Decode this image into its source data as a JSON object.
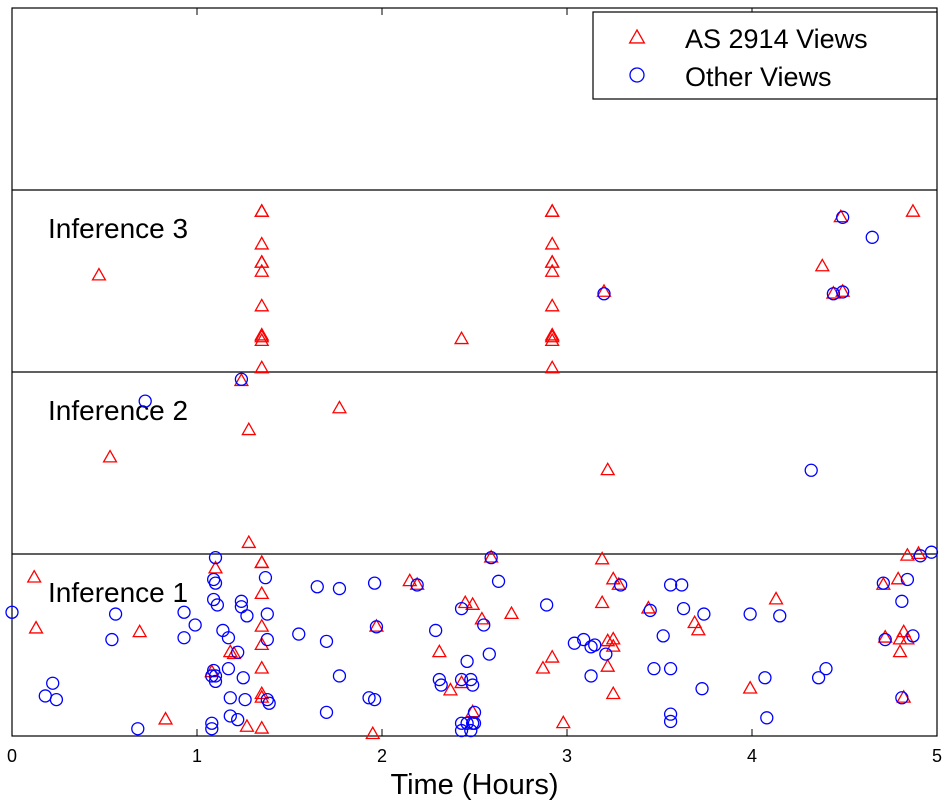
{
  "chart_data": {
    "type": "scatter",
    "xlabel": "Time (Hours)",
    "xlim": [
      0,
      5
    ],
    "xticks": [
      "0",
      "1",
      "2",
      "3",
      "4",
      "5"
    ],
    "ylim": [
      0,
      4
    ],
    "band_labels": [
      "Inference 1",
      "Inference 2",
      "Inference 3"
    ],
    "legend": {
      "position": "top-right",
      "entries": [
        "AS 2914 Views",
        "Other Views"
      ]
    },
    "colors": {
      "as2914": "#ff0000",
      "other": "#0000ff"
    },
    "series": [
      {
        "name": "AS 2914 Views",
        "marker": "triangle",
        "points": [
          [
            0.47,
            2.53
          ],
          [
            1.35,
            2.88
          ],
          [
            1.35,
            2.88
          ],
          [
            1.35,
            2.7
          ],
          [
            1.35,
            2.55
          ],
          [
            1.35,
            2.6
          ],
          [
            1.35,
            2.6
          ],
          [
            1.35,
            2.36
          ],
          [
            1.35,
            2.2
          ],
          [
            1.35,
            2.19
          ],
          [
            1.35,
            2.17
          ],
          [
            1.35,
            2.02
          ],
          [
            2.43,
            2.18
          ],
          [
            2.92,
            2.88
          ],
          [
            2.92,
            2.88
          ],
          [
            2.92,
            2.7
          ],
          [
            2.92,
            2.55
          ],
          [
            2.92,
            2.6
          ],
          [
            2.92,
            2.6
          ],
          [
            2.92,
            2.36
          ],
          [
            2.92,
            2.2
          ],
          [
            2.92,
            2.19
          ],
          [
            2.92,
            2.17
          ],
          [
            2.92,
            2.02
          ],
          [
            4.38,
            2.58
          ],
          [
            4.87,
            2.88
          ],
          [
            4.48,
            2.85
          ],
          [
            4.44,
            2.43
          ],
          [
            4.49,
            2.44
          ],
          [
            3.2,
            2.44
          ],
          [
            1.24,
            1.95
          ],
          [
            1.77,
            1.8
          ],
          [
            1.28,
            1.68
          ],
          [
            0.53,
            1.53
          ],
          [
            3.22,
            1.46
          ],
          [
            0.12,
            0.87
          ],
          [
            1.35,
            0.95
          ],
          [
            1.28,
            1.06
          ],
          [
            1.35,
            0.95
          ],
          [
            1.35,
            0.78
          ],
          [
            1.35,
            0.6
          ],
          [
            1.35,
            0.5
          ],
          [
            1.35,
            0.37
          ],
          [
            1.35,
            0.21
          ],
          [
            1.35,
            0.23
          ],
          [
            1.35,
            0.04
          ],
          [
            1.27,
            0.05
          ],
          [
            0.13,
            0.59
          ],
          [
            0.69,
            0.57
          ],
          [
            0.83,
            0.09
          ],
          [
            1.08,
            0.35
          ],
          [
            1.18,
            0.46
          ],
          [
            1.1,
            0.92
          ],
          [
            1.2,
            0.45
          ],
          [
            1.95,
            0.01
          ],
          [
            1.97,
            0.6
          ],
          [
            2.15,
            0.85
          ],
          [
            2.19,
            0.83
          ],
          [
            2.31,
            0.46
          ],
          [
            2.37,
            0.25
          ],
          [
            2.43,
            0.29
          ],
          [
            2.45,
            0.73
          ],
          [
            2.49,
            0.72
          ],
          [
            2.49,
            0.13
          ],
          [
            2.54,
            0.64
          ],
          [
            2.59,
            0.98
          ],
          [
            2.7,
            0.67
          ],
          [
            2.87,
            0.37
          ],
          [
            2.92,
            0.43
          ],
          [
            2.98,
            0.07
          ],
          [
            3.19,
            0.97
          ],
          [
            3.19,
            0.73
          ],
          [
            3.22,
            0.38
          ],
          [
            3.22,
            0.52
          ],
          [
            3.25,
            0.23
          ],
          [
            3.25,
            0.49
          ],
          [
            3.25,
            0.53
          ],
          [
            3.25,
            0.86
          ],
          [
            3.28,
            0.83
          ],
          [
            3.44,
            0.7
          ],
          [
            3.69,
            0.62
          ],
          [
            3.71,
            0.58
          ],
          [
            3.99,
            0.26
          ],
          [
            4.13,
            0.75
          ],
          [
            4.71,
            0.83
          ],
          [
            4.72,
            0.54
          ],
          [
            4.79,
            0.86
          ],
          [
            4.8,
            0.46
          ],
          [
            4.8,
            0.53
          ],
          [
            4.82,
            0.57
          ],
          [
            4.82,
            0.21
          ],
          [
            4.84,
            0.53
          ],
          [
            4.84,
            0.99
          ],
          [
            4.9,
            1.0
          ]
        ]
      },
      {
        "name": "Other Views",
        "marker": "circle",
        "points": [
          [
            4.65,
            2.74
          ],
          [
            4.49,
            2.85
          ],
          [
            4.44,
            2.43
          ],
          [
            4.49,
            2.44
          ],
          [
            3.2,
            2.43
          ],
          [
            1.24,
            1.96
          ],
          [
            0.72,
            1.84
          ],
          [
            4.32,
            1.46
          ],
          [
            0.0,
            0.68
          ],
          [
            0.18,
            0.22
          ],
          [
            0.22,
            0.29
          ],
          [
            0.24,
            0.2
          ],
          [
            0.56,
            0.67
          ],
          [
            0.54,
            0.53
          ],
          [
            0.68,
            0.04
          ],
          [
            0.93,
            0.54
          ],
          [
            0.93,
            0.68
          ],
          [
            0.99,
            0.61
          ],
          [
            1.08,
            0.07
          ],
          [
            1.08,
            0.04
          ],
          [
            1.08,
            0.33
          ],
          [
            1.09,
            0.36
          ],
          [
            1.1,
            0.98
          ],
          [
            1.09,
            0.86
          ],
          [
            1.1,
            0.84
          ],
          [
            1.09,
            0.75
          ],
          [
            1.11,
            0.72
          ],
          [
            1.1,
            0.33
          ],
          [
            1.1,
            0.3
          ],
          [
            1.14,
            0.58
          ],
          [
            1.17,
            0.54
          ],
          [
            1.17,
            0.37
          ],
          [
            1.18,
            0.21
          ],
          [
            1.18,
            0.11
          ],
          [
            1.22,
            0.46
          ],
          [
            1.22,
            0.09
          ],
          [
            1.24,
            0.74
          ],
          [
            1.24,
            0.71
          ],
          [
            1.25,
            0.32
          ],
          [
            1.26,
            0.2
          ],
          [
            1.27,
            0.66
          ],
          [
            1.37,
            0.87
          ],
          [
            1.38,
            0.67
          ],
          [
            1.38,
            0.53
          ],
          [
            1.38,
            0.2
          ],
          [
            1.39,
            0.18
          ],
          [
            1.55,
            0.56
          ],
          [
            1.65,
            0.82
          ],
          [
            1.7,
            0.52
          ],
          [
            1.7,
            0.13
          ],
          [
            1.77,
            0.81
          ],
          [
            1.77,
            0.33
          ],
          [
            1.93,
            0.21
          ],
          [
            1.96,
            0.84
          ],
          [
            1.97,
            0.6
          ],
          [
            1.96,
            0.2
          ],
          [
            2.19,
            0.83
          ],
          [
            2.29,
            0.58
          ],
          [
            2.31,
            0.31
          ],
          [
            2.32,
            0.28
          ],
          [
            2.43,
            0.7
          ],
          [
            2.43,
            0.31
          ],
          [
            2.46,
            0.41
          ],
          [
            2.48,
            0.31
          ],
          [
            2.49,
            0.28
          ],
          [
            2.43,
            0.07
          ],
          [
            2.46,
            0.07
          ],
          [
            2.49,
            0.07
          ],
          [
            2.43,
            0.03
          ],
          [
            2.48,
            0.03
          ],
          [
            2.5,
            0.07
          ],
          [
            2.5,
            0.13
          ],
          [
            2.55,
            0.61
          ],
          [
            2.58,
            0.45
          ],
          [
            2.59,
            0.98
          ],
          [
            2.63,
            0.85
          ],
          [
            2.89,
            0.72
          ],
          [
            3.04,
            0.51
          ],
          [
            3.09,
            0.53
          ],
          [
            3.13,
            0.33
          ],
          [
            3.13,
            0.49
          ],
          [
            3.15,
            0.5
          ],
          [
            3.21,
            0.45
          ],
          [
            3.29,
            0.83
          ],
          [
            3.45,
            0.69
          ],
          [
            3.47,
            0.37
          ],
          [
            3.52,
            0.55
          ],
          [
            3.56,
            0.83
          ],
          [
            3.56,
            0.37
          ],
          [
            3.56,
            0.12
          ],
          [
            3.56,
            0.08
          ],
          [
            3.62,
            0.83
          ],
          [
            3.63,
            0.7
          ],
          [
            3.73,
            0.26
          ],
          [
            3.74,
            0.67
          ],
          [
            3.99,
            0.67
          ],
          [
            4.07,
            0.32
          ],
          [
            4.08,
            0.1
          ],
          [
            4.15,
            0.66
          ],
          [
            4.36,
            0.32
          ],
          [
            4.4,
            0.37
          ],
          [
            4.71,
            0.84
          ],
          [
            4.72,
            0.53
          ],
          [
            4.81,
            0.74
          ],
          [
            4.81,
            0.21
          ],
          [
            4.84,
            0.86
          ],
          [
            4.87,
            0.55
          ],
          [
            4.91,
            0.99
          ],
          [
            4.97,
            1.01
          ]
        ]
      }
    ]
  }
}
